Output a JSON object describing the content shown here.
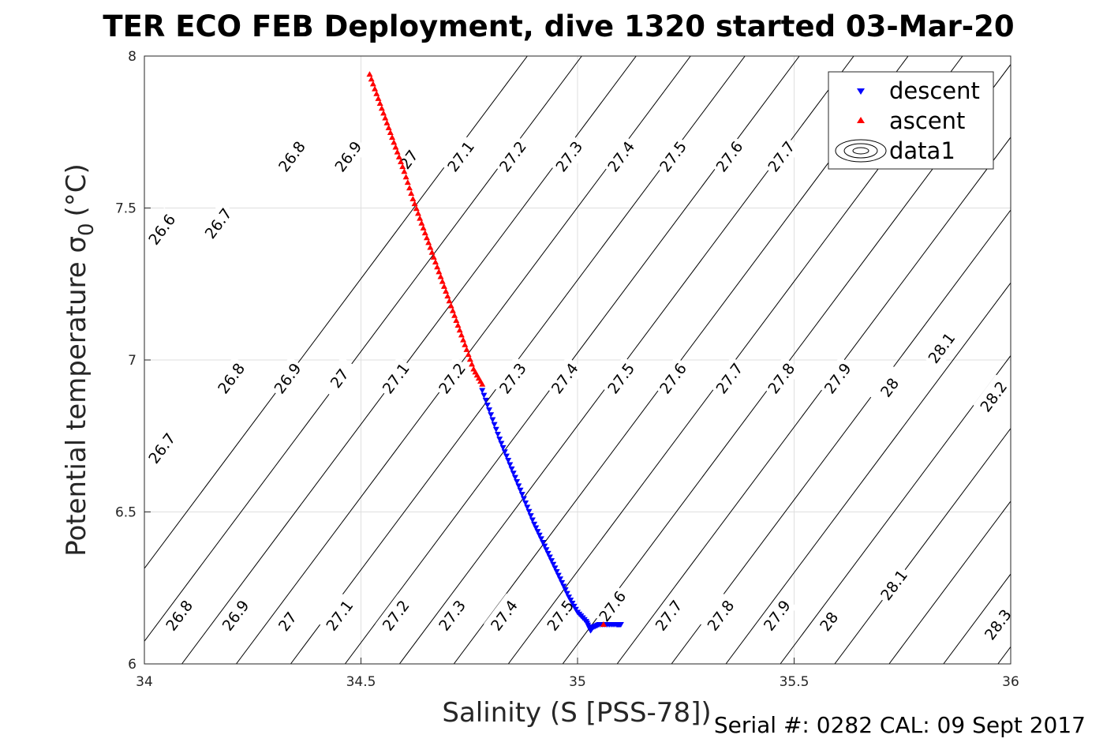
{
  "chart_data": {
    "type": "scatter",
    "title": "TER ECO FEB Deployment, dive 1320 started 03-Mar-20",
    "xlabel": "Salinity (S [PSS-78])",
    "ylabel_main": "Potential temperature σ",
    "ylabel_sub": "0",
    "ylabel_unit": "(°C)",
    "footer": "Serial #: 0282  CAL: 09 Sept 2017",
    "xlim": [
      34,
      36
    ],
    "ylim": [
      6,
      8
    ],
    "xticks": [
      34,
      34.5,
      35,
      35.5,
      36
    ],
    "xtick_labels": [
      "34",
      "34.5",
      "35",
      "35.5",
      "36"
    ],
    "yticks": [
      6,
      6.5,
      7,
      7.5,
      8
    ],
    "ytick_labels": [
      "6",
      "6.5",
      "7",
      "7.5",
      "8"
    ],
    "grid": true,
    "legend_position": "top-right",
    "legend": [
      {
        "label": "descent",
        "marker": "triangle-down",
        "color": "#0000ff"
      },
      {
        "label": "ascent",
        "marker": "triangle-up",
        "color": "#ff0000"
      },
      {
        "label": "data1",
        "marker": "contour",
        "color": "#000000"
      }
    ],
    "series": [
      {
        "name": "descent",
        "color": "#0000ff",
        "marker": "triangle-down",
        "x": [
          34.78,
          34.8,
          34.82,
          34.84,
          34.86,
          34.88,
          34.9,
          34.92,
          34.94,
          34.96,
          34.98,
          35.0,
          35.02,
          35.03,
          35.035,
          35.05,
          35.07,
          35.09,
          35.1
        ],
        "y": [
          6.9,
          6.82,
          6.74,
          6.67,
          6.6,
          6.53,
          6.46,
          6.4,
          6.34,
          6.28,
          6.22,
          6.17,
          6.14,
          6.11,
          6.12,
          6.13,
          6.13,
          6.13,
          6.13
        ]
      },
      {
        "name": "ascent",
        "color": "#ff0000",
        "marker": "triangle-up",
        "x": [
          34.52,
          34.54,
          34.56,
          34.58,
          34.6,
          34.62,
          34.64,
          34.66,
          34.68,
          34.7,
          34.72,
          34.74,
          34.76,
          34.78,
          35.06
        ],
        "y": [
          7.94,
          7.86,
          7.78,
          7.7,
          7.62,
          7.53,
          7.45,
          7.37,
          7.29,
          7.21,
          7.13,
          7.05,
          6.97,
          6.92,
          6.13
        ]
      }
    ],
    "contour": {
      "name": "data1",
      "levels": [
        "26.6",
        "26.7",
        "26.8",
        "26.9",
        "27",
        "27.1",
        "27.2",
        "27.3",
        "27.4",
        "27.5",
        "27.6",
        "27.7",
        "27.8",
        "27.9",
        "28",
        "28.1",
        "28.2",
        "28.3"
      ],
      "labels": [
        {
          "text": "26.6",
          "x": 34.04,
          "y": 7.43
        },
        {
          "text": "26.7",
          "x": 34.17,
          "y": 7.45
        },
        {
          "text": "26.8",
          "x": 34.34,
          "y": 7.67
        },
        {
          "text": "26.9",
          "x": 34.47,
          "y": 7.67
        },
        {
          "text": "27",
          "x": 34.61,
          "y": 7.66
        },
        {
          "text": "27.1",
          "x": 34.73,
          "y": 7.67
        },
        {
          "text": "27.2",
          "x": 34.85,
          "y": 7.67
        },
        {
          "text": "27.3",
          "x": 34.98,
          "y": 7.67
        },
        {
          "text": "27.4",
          "x": 35.1,
          "y": 7.67
        },
        {
          "text": "27.5",
          "x": 35.22,
          "y": 7.67
        },
        {
          "text": "27.6",
          "x": 35.35,
          "y": 7.67
        },
        {
          "text": "27.7",
          "x": 35.47,
          "y": 7.67
        },
        {
          "text": "26.8",
          "x": 34.2,
          "y": 6.94
        },
        {
          "text": "26.9",
          "x": 34.33,
          "y": 6.94
        },
        {
          "text": "27",
          "x": 34.45,
          "y": 6.94
        },
        {
          "text": "27.1",
          "x": 34.58,
          "y": 6.94
        },
        {
          "text": "27.2",
          "x": 34.71,
          "y": 6.94
        },
        {
          "text": "27.3",
          "x": 34.85,
          "y": 6.94
        },
        {
          "text": "27.4",
          "x": 34.97,
          "y": 6.94
        },
        {
          "text": "27.5",
          "x": 35.1,
          "y": 6.94
        },
        {
          "text": "27.6",
          "x": 35.22,
          "y": 6.94
        },
        {
          "text": "27.7",
          "x": 35.35,
          "y": 6.94
        },
        {
          "text": "27.8",
          "x": 35.47,
          "y": 6.94
        },
        {
          "text": "27.9",
          "x": 35.6,
          "y": 6.94
        },
        {
          "text": "28",
          "x": 35.72,
          "y": 6.91
        },
        {
          "text": "28.1",
          "x": 35.84,
          "y": 7.04
        },
        {
          "text": "28.2",
          "x": 35.96,
          "y": 6.88
        },
        {
          "text": "26.7",
          "x": 34.04,
          "y": 6.71
        },
        {
          "text": "26.8",
          "x": 34.08,
          "y": 6.16
        },
        {
          "text": "26.9",
          "x": 34.21,
          "y": 6.16
        },
        {
          "text": "27",
          "x": 34.33,
          "y": 6.14
        },
        {
          "text": "27.1",
          "x": 34.45,
          "y": 6.16
        },
        {
          "text": "27.2",
          "x": 34.58,
          "y": 6.16
        },
        {
          "text": "27.3",
          "x": 34.71,
          "y": 6.16
        },
        {
          "text": "27.4",
          "x": 34.83,
          "y": 6.16
        },
        {
          "text": "27.5",
          "x": 34.96,
          "y": 6.16
        },
        {
          "text": "27.6",
          "x": 35.08,
          "y": 6.19
        },
        {
          "text": "27.7",
          "x": 35.21,
          "y": 6.16
        },
        {
          "text": "27.8",
          "x": 35.33,
          "y": 6.16
        },
        {
          "text": "27.9",
          "x": 35.46,
          "y": 6.16
        },
        {
          "text": "28",
          "x": 35.58,
          "y": 6.14
        },
        {
          "text": "28.1",
          "x": 35.73,
          "y": 6.26
        },
        {
          "text": "28.3",
          "x": 35.97,
          "y": 6.13
        }
      ]
    }
  }
}
